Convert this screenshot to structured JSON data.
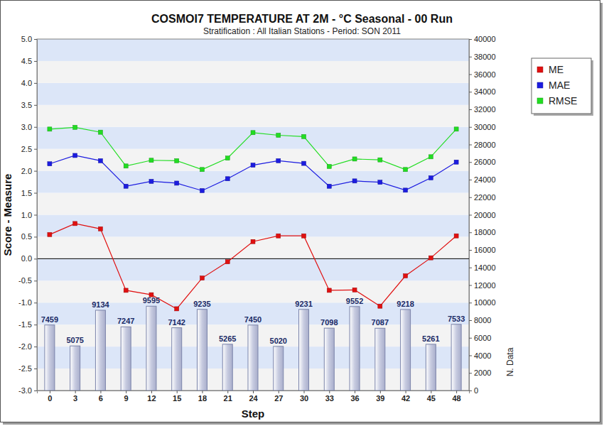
{
  "chart_data": {
    "type": "line",
    "title": "COSMOI7 TEMPERATURE AT 2M - °C Seasonal  - 00 Run",
    "subtitle": "Stratification : All Italian Stations - Period: SON 2011",
    "x_label": "Step",
    "y_label": "Score - Measure",
    "y2_label": "N. Data",
    "categories": [
      "0",
      "3",
      "6",
      "9",
      "12",
      "15",
      "18",
      "21",
      "24",
      "27",
      "30",
      "33",
      "36",
      "39",
      "42",
      "45",
      "48"
    ],
    "series": [
      {
        "name": "ME",
        "type": "line",
        "marker": "square",
        "color": "#e01010",
        "values": [
          0.55,
          0.8,
          0.68,
          -0.72,
          -0.82,
          -1.14,
          -0.44,
          -0.07,
          0.39,
          0.52,
          0.52,
          -0.72,
          -0.71,
          -1.08,
          -0.39,
          0.02,
          0.52
        ]
      },
      {
        "name": "MAE",
        "type": "line",
        "marker": "square",
        "color": "#1c1ce0",
        "values": [
          2.16,
          2.35,
          2.23,
          1.65,
          1.76,
          1.72,
          1.55,
          1.82,
          2.13,
          2.23,
          2.17,
          1.65,
          1.77,
          1.74,
          1.56,
          1.84,
          2.2
        ]
      },
      {
        "name": "RMSE",
        "type": "line",
        "marker": "square",
        "color": "#22dd22",
        "values": [
          2.95,
          2.99,
          2.88,
          2.11,
          2.24,
          2.23,
          2.03,
          2.29,
          2.87,
          2.81,
          2.78,
          2.1,
          2.27,
          2.25,
          2.03,
          2.32,
          2.95
        ]
      },
      {
        "type": "bar",
        "axis": "y2",
        "color": "#c7cbe0",
        "data_labels": true,
        "values": [
          7459,
          5075,
          9134,
          7247,
          9595,
          7142,
          9235,
          5265,
          7450,
          5020,
          9231,
          7098,
          9552,
          7087,
          9218,
          5261,
          7533
        ]
      }
    ],
    "ylim": [
      -3,
      5
    ],
    "yticks": [
      {
        "value": -3,
        "label": "-3.0"
      },
      {
        "value": -2.5,
        "label": "-2.5"
      },
      {
        "value": -2,
        "label": "-2.0"
      },
      {
        "value": -1.5,
        "label": "-1.5"
      },
      {
        "value": -1,
        "label": "-1.0"
      },
      {
        "value": -0.5,
        "label": "-0.5"
      },
      {
        "value": 0,
        "label": "0.0"
      },
      {
        "value": 0.5,
        "label": "0.5"
      },
      {
        "value": 1,
        "label": "1.0"
      },
      {
        "value": 1.5,
        "label": "1.5"
      },
      {
        "value": 2,
        "label": "2.0"
      },
      {
        "value": 2.5,
        "label": "2.5"
      },
      {
        "value": 3,
        "label": "3.0"
      },
      {
        "value": 3.5,
        "label": "3.5"
      },
      {
        "value": 4,
        "label": "4.0"
      },
      {
        "value": 4.5,
        "label": "4.5"
      },
      {
        "value": 5,
        "label": "5.0"
      }
    ],
    "y2lim": [
      0,
      40000
    ],
    "y2ticks": [
      0,
      2000,
      4000,
      6000,
      8000,
      10000,
      12000,
      14000,
      16000,
      18000,
      20000,
      22000,
      24000,
      26000,
      28000,
      30000,
      32000,
      34000,
      36000,
      38000,
      40000
    ],
    "grid": true,
    "legend": "right"
  }
}
